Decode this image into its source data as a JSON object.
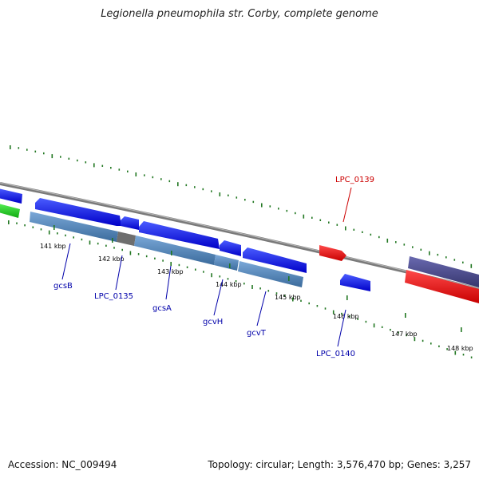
{
  "title": "Legionella pneumophila str. Corby, complete genome",
  "footer": {
    "accession": "Accession: NC_009494",
    "summary": "Topology: circular; Length: 3,576,470 bp; Genes: 3,257"
  },
  "colors": {
    "backbone": "#808080",
    "forward_gene": "#0000ee",
    "reverse_gene_highlight": "#ee0000",
    "cds_bar": "#5b8fc4",
    "dark_cds": "#505080",
    "green_gene": "#22cc22",
    "gc_ticks": "#227722",
    "label_blue": "#0000aa",
    "label_red": "#cc0000"
  },
  "scale_labels": [
    "141 kbp",
    "142 kbp",
    "143 kbp",
    "144 kbp",
    "145 kbp",
    "146 kbp",
    "147 kbp",
    "148 kbp"
  ],
  "gene_labels": [
    {
      "name": "gcsB",
      "color": "blue"
    },
    {
      "name": "LPC_0135",
      "color": "blue"
    },
    {
      "name": "gcsA",
      "color": "blue"
    },
    {
      "name": "gcvH",
      "color": "blue"
    },
    {
      "name": "gcvT",
      "color": "blue"
    },
    {
      "name": "LPC_0140",
      "color": "blue"
    },
    {
      "name": "LPC_0139",
      "color": "red"
    }
  ]
}
